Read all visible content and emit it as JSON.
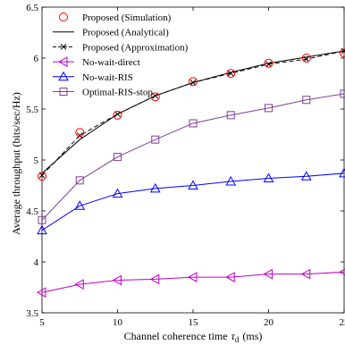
{
  "chart_data": {
    "type": "line",
    "title": "",
    "xlabel": "Channel coherence time",
    "xlabel_symbol": "τ",
    "xlabel_sub": "d",
    "xlabel_unit": "(ms)",
    "ylabel": "Average throughput (bits/sec/Hz)",
    "xlim": [
      5,
      25
    ],
    "ylim": [
      3.5,
      6.5
    ],
    "xticks": [
      "5",
      "10",
      "15",
      "20",
      "25"
    ],
    "yticks": [
      "3.5",
      "4",
      "4.5",
      "5",
      "5.5",
      "6",
      "6.5"
    ],
    "grid": false,
    "legend_position": "top-left",
    "x": [
      5,
      7.5,
      10,
      12.5,
      15,
      17.5,
      20,
      22.5,
      25
    ],
    "series": [
      {
        "name": "Proposed (Simulation)",
        "color": "#ff0000",
        "line": "none",
        "marker": "circle",
        "values": [
          4.84,
          5.27,
          5.44,
          5.62,
          5.77,
          5.85,
          5.95,
          6.0,
          6.05
        ]
      },
      {
        "name": "Proposed (Analytical)",
        "color": "#000000",
        "line": "solid",
        "marker": "none",
        "values": [
          4.87,
          5.2,
          5.45,
          5.63,
          5.76,
          5.86,
          5.95,
          6.01,
          6.07
        ]
      },
      {
        "name": "Proposed (Approximation)",
        "color": "#000000",
        "line": "dashed",
        "marker": "x",
        "values": [
          4.85,
          5.24,
          5.45,
          5.63,
          5.76,
          5.85,
          5.94,
          5.99,
          6.07
        ]
      },
      {
        "name": "No-wait-direct",
        "color": "#c000c0",
        "line": "solid",
        "marker": "triangle-left",
        "values": [
          3.7,
          3.78,
          3.82,
          3.83,
          3.85,
          3.85,
          3.88,
          3.88,
          3.9
        ]
      },
      {
        "name": "No-wait-RIS",
        "color": "#0000ff",
        "line": "solid",
        "marker": "triangle-up",
        "values": [
          4.31,
          4.55,
          4.67,
          4.72,
          4.75,
          4.79,
          4.82,
          4.84,
          4.87
        ]
      },
      {
        "name": "Optimal-RIS-stop",
        "color": "#7f3f98",
        "line": "solid",
        "marker": "square",
        "values": [
          4.41,
          4.8,
          5.03,
          5.2,
          5.36,
          5.44,
          5.51,
          5.59,
          5.65
        ]
      }
    ]
  }
}
